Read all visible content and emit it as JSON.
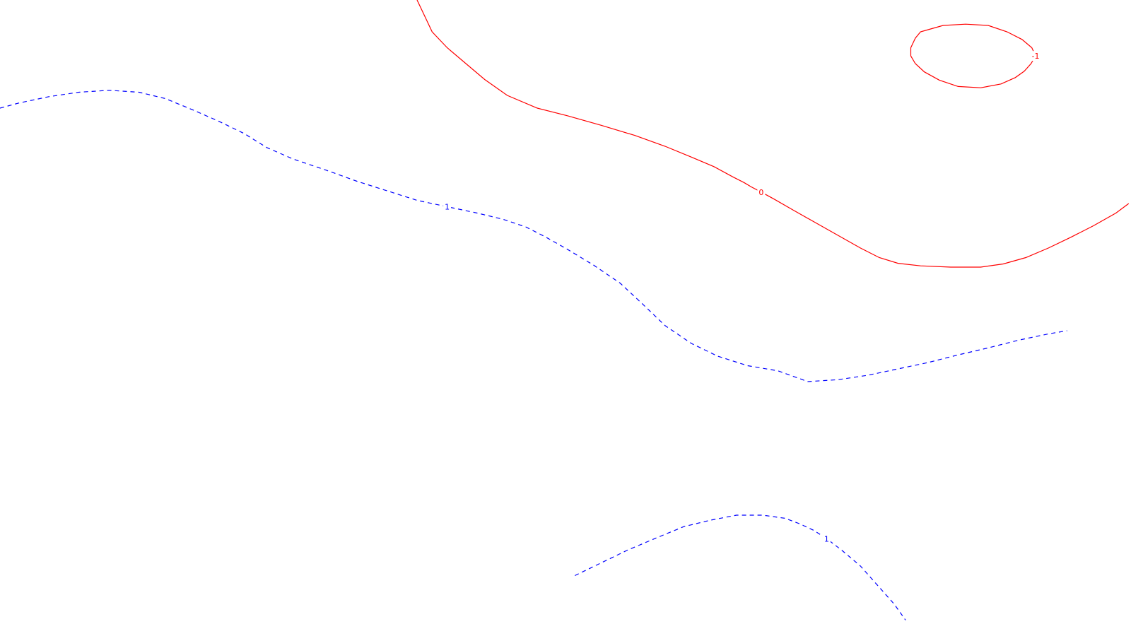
{
  "chart_data": {
    "type": "contour",
    "title": "",
    "xlabel": "",
    "ylabel": "",
    "grid": false,
    "legend": "none",
    "levels": [
      {
        "level": "0",
        "label": "0",
        "color": "#ff0000",
        "style": "solid",
        "paths": [
          {
            "label_index": 17,
            "points": [
              [
                0.0,
                0.0
              ],
              [
                0.01,
                0.025
              ],
              [
                0.02,
                0.05
              ],
              [
                0.04,
                0.075
              ],
              [
                0.065,
                0.1
              ],
              [
                0.09,
                0.125
              ],
              [
                0.12,
                0.15
              ],
              [
                0.16,
                0.17
              ],
              [
                0.2,
                0.182
              ],
              [
                0.245,
                0.197
              ],
              [
                0.29,
                0.213
              ],
              [
                0.33,
                0.23
              ],
              [
                0.365,
                0.247
              ],
              [
                0.395,
                0.262
              ],
              [
                0.42,
                0.278
              ],
              [
                0.435,
                0.287
              ],
              [
                0.445,
                0.294
              ],
              [
                0.458,
                0.302
              ],
              [
                0.475,
                0.313
              ],
              [
                0.5,
                0.33
              ],
              [
                0.53,
                0.35
              ],
              [
                0.56,
                0.37
              ],
              [
                0.59,
                0.39
              ],
              [
                0.615,
                0.405
              ],
              [
                0.64,
                0.414
              ],
              [
                0.67,
                0.418
              ],
              [
                0.71,
                0.42
              ],
              [
                0.75,
                0.42
              ],
              [
                0.78,
                0.415
              ],
              [
                0.81,
                0.405
              ],
              [
                0.84,
                0.39
              ],
              [
                0.87,
                0.373
              ],
              [
                0.9,
                0.355
              ],
              [
                0.93,
                0.335
              ],
              [
                0.947,
                0.32
              ]
            ]
          }
        ]
      },
      {
        "level": "-1",
        "label": "-1",
        "color": "#ff0000",
        "style": "solid",
        "paths": [
          {
            "label_index": 7,
            "points": [
              [
                0.685,
                0.045
              ],
              [
                0.7,
                0.04
              ],
              [
                0.73,
                0.038
              ],
              [
                0.76,
                0.04
              ],
              [
                0.785,
                0.05
              ],
              [
                0.805,
                0.062
              ],
              [
                0.818,
                0.075
              ],
              [
                0.823,
                0.088
              ],
              [
                0.817,
                0.1
              ],
              [
                0.808,
                0.112
              ],
              [
                0.796,
                0.122
              ],
              [
                0.777,
                0.132
              ],
              [
                0.75,
                0.138
              ],
              [
                0.72,
                0.136
              ],
              [
                0.695,
                0.126
              ],
              [
                0.675,
                0.113
              ],
              [
                0.663,
                0.1
              ],
              [
                0.657,
                0.088
              ],
              [
                0.657,
                0.075
              ],
              [
                0.663,
                0.06
              ],
              [
                0.67,
                0.05
              ],
              [
                0.685,
                0.045
              ]
            ]
          }
        ]
      },
      {
        "level": "1",
        "label": "1",
        "color": "#0000ff",
        "style": "dashed",
        "paths": [
          {
            "label_index": 16,
            "points": [
              [
                -0.555,
                0.17
              ],
              [
                -0.53,
                0.162
              ],
              [
                -0.49,
                0.152
              ],
              [
                -0.45,
                0.145
              ],
              [
                -0.41,
                0.142
              ],
              [
                -0.37,
                0.145
              ],
              [
                -0.335,
                0.155
              ],
              [
                -0.3,
                0.172
              ],
              [
                -0.265,
                0.19
              ],
              [
                -0.23,
                0.21
              ],
              [
                -0.2,
                0.232
              ],
              [
                -0.165,
                0.25
              ],
              [
                -0.12,
                0.268
              ],
              [
                -0.08,
                0.285
              ],
              [
                -0.04,
                0.3
              ],
              [
                0.0,
                0.315
              ],
              [
                0.04,
                0.325
              ],
              [
                0.08,
                0.335
              ],
              [
                0.115,
                0.345
              ],
              [
                0.145,
                0.357
              ],
              [
                0.17,
                0.372
              ],
              [
                0.2,
                0.392
              ],
              [
                0.235,
                0.417
              ],
              [
                0.27,
                0.445
              ],
              [
                0.3,
                0.478
              ],
              [
                0.33,
                0.512
              ],
              [
                0.365,
                0.54
              ],
              [
                0.4,
                0.56
              ],
              [
                0.44,
                0.575
              ],
              [
                0.48,
                0.583
              ],
              [
                0.52,
                0.6
              ],
              [
                0.56,
                0.597
              ],
              [
                0.6,
                0.59
              ],
              [
                0.64,
                0.58
              ],
              [
                0.68,
                0.57
              ],
              [
                0.72,
                0.558
              ],
              [
                0.76,
                0.547
              ],
              [
                0.8,
                0.535
              ],
              [
                0.84,
                0.525
              ],
              [
                0.865,
                0.52
              ]
            ]
          },
          {
            "label_index": 11,
            "points": [
              [
                0.21,
                0.905
              ],
              [
                0.245,
                0.885
              ],
              [
                0.28,
                0.865
              ],
              [
                0.32,
                0.845
              ],
              [
                0.355,
                0.828
              ],
              [
                0.39,
                0.818
              ],
              [
                0.425,
                0.81
              ],
              [
                0.46,
                0.81
              ],
              [
                0.49,
                0.815
              ],
              [
                0.51,
                0.824
              ],
              [
                0.528,
                0.834
              ],
              [
                0.545,
                0.847
              ],
              [
                0.565,
                0.865
              ],
              [
                0.59,
                0.89
              ],
              [
                0.605,
                0.91
              ],
              [
                0.62,
                0.93
              ],
              [
                0.635,
                0.95
              ],
              [
                0.65,
                0.975
              ]
            ]
          }
        ]
      }
    ]
  }
}
